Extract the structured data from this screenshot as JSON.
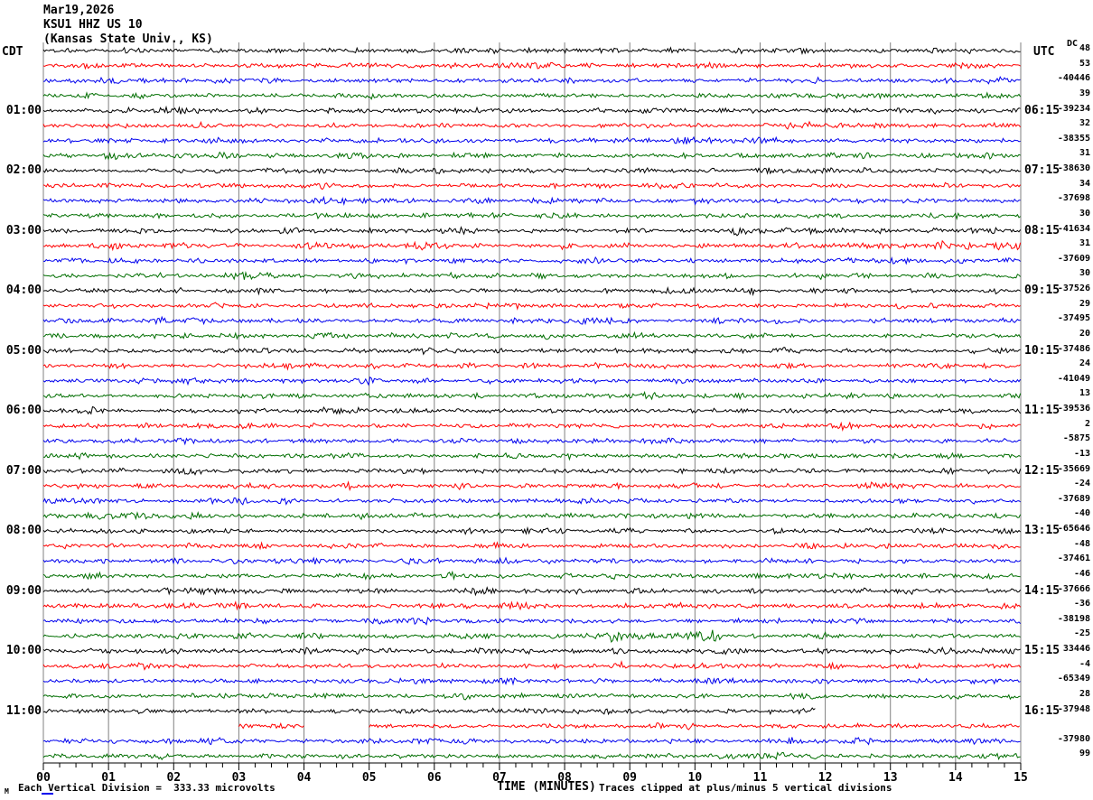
{
  "title": {
    "line1": "Mar19,2026",
    "line2": "KSU1 HHZ US 10",
    "line3": "(Kansas State Univ., KS)"
  },
  "header": {
    "left_timezone": "CDT",
    "right_timezone": "UTC",
    "dc_column": "DC"
  },
  "footer": {
    "x_axis_title": "TIME (MINUTES)",
    "left_note": "Each Vertical Division =  333.33 microvolts",
    "right_note": "Traces clipped at plus/minus 5 vertical divisions",
    "corner_mark": "M"
  },
  "colors": {
    "black": "#000000",
    "red": "#FF0000",
    "blue": "#0000EE",
    "green": "#006E00",
    "grid": "#808080",
    "axis": "#000000",
    "link_underline": "#0000EE"
  },
  "chart_data": {
    "type": "line",
    "subtype": "helicorder-seismogram",
    "minutes_per_row": 15,
    "x_tick_labels": [
      "00",
      "01",
      "02",
      "03",
      "04",
      "05",
      "06",
      "07",
      "08",
      "09",
      "10",
      "11",
      "12",
      "13",
      "14",
      "15"
    ],
    "minor_ticks_per_minute": 4,
    "trace_color_cycle": [
      "black",
      "red",
      "blue",
      "green"
    ],
    "clip_divisions": 5,
    "microvolts_per_division": "333.33",
    "rows": [
      {
        "cdt": "",
        "utc": "",
        "dc": "48",
        "color": "black",
        "segments": [
          [
            0,
            15
          ]
        ]
      },
      {
        "cdt": "",
        "utc": "",
        "dc": "53",
        "color": "red",
        "segments": [
          [
            0,
            15
          ]
        ]
      },
      {
        "cdt": "",
        "utc": "",
        "dc": "-40446",
        "color": "blue",
        "segments": [
          [
            0,
            15
          ]
        ]
      },
      {
        "cdt": "",
        "utc": "",
        "dc": "39",
        "color": "green",
        "segments": [
          [
            0,
            15
          ]
        ]
      },
      {
        "cdt": "01:00",
        "utc": "06:15",
        "dc": "-39234",
        "color": "black",
        "segments": [
          [
            0,
            15
          ]
        ]
      },
      {
        "cdt": "",
        "utc": "",
        "dc": "32",
        "color": "red",
        "segments": [
          [
            0,
            15
          ]
        ]
      },
      {
        "cdt": "",
        "utc": "",
        "dc": "-38355",
        "color": "blue",
        "segments": [
          [
            0,
            15
          ]
        ]
      },
      {
        "cdt": "",
        "utc": "",
        "dc": "31",
        "color": "green",
        "segments": [
          [
            0,
            15
          ]
        ]
      },
      {
        "cdt": "02:00",
        "utc": "07:15",
        "dc": "-38630",
        "color": "black",
        "segments": [
          [
            0,
            15
          ]
        ]
      },
      {
        "cdt": "",
        "utc": "",
        "dc": "34",
        "color": "red",
        "segments": [
          [
            0,
            15
          ]
        ]
      },
      {
        "cdt": "",
        "utc": "",
        "dc": "-37698",
        "color": "blue",
        "segments": [
          [
            0,
            15
          ]
        ]
      },
      {
        "cdt": "",
        "utc": "",
        "dc": "30",
        "color": "green",
        "segments": [
          [
            0,
            15
          ]
        ]
      },
      {
        "cdt": "03:00",
        "utc": "08:15",
        "dc": "-41634",
        "color": "black",
        "segments": [
          [
            0,
            15
          ]
        ]
      },
      {
        "cdt": "",
        "utc": "",
        "dc": "31",
        "color": "red",
        "segments": [
          [
            0,
            15
          ]
        ]
      },
      {
        "cdt": "",
        "utc": "",
        "dc": "-37609",
        "color": "blue",
        "segments": [
          [
            0,
            15
          ]
        ]
      },
      {
        "cdt": "",
        "utc": "",
        "dc": "30",
        "color": "green",
        "segments": [
          [
            0,
            15
          ]
        ]
      },
      {
        "cdt": "04:00",
        "utc": "09:15",
        "dc": "-37526",
        "color": "black",
        "segments": [
          [
            0,
            15
          ]
        ]
      },
      {
        "cdt": "",
        "utc": "",
        "dc": "29",
        "color": "red",
        "segments": [
          [
            0,
            15
          ]
        ]
      },
      {
        "cdt": "",
        "utc": "",
        "dc": "-37495",
        "color": "blue",
        "segments": [
          [
            0,
            15
          ]
        ]
      },
      {
        "cdt": "",
        "utc": "",
        "dc": "20",
        "color": "green",
        "segments": [
          [
            0,
            15
          ]
        ]
      },
      {
        "cdt": "05:00",
        "utc": "10:15",
        "dc": "-37486",
        "color": "black",
        "segments": [
          [
            0,
            15
          ]
        ]
      },
      {
        "cdt": "",
        "utc": "",
        "dc": "24",
        "color": "red",
        "segments": [
          [
            0,
            15
          ]
        ]
      },
      {
        "cdt": "",
        "utc": "",
        "dc": "-41049",
        "color": "blue",
        "segments": [
          [
            0,
            15
          ]
        ]
      },
      {
        "cdt": "",
        "utc": "",
        "dc": "13",
        "color": "green",
        "segments": [
          [
            0,
            15
          ]
        ]
      },
      {
        "cdt": "06:00",
        "utc": "11:15",
        "dc": "-39536",
        "color": "black",
        "segments": [
          [
            0,
            15
          ]
        ]
      },
      {
        "cdt": "",
        "utc": "",
        "dc": "2",
        "color": "red",
        "segments": [
          [
            0,
            15
          ]
        ]
      },
      {
        "cdt": "",
        "utc": "",
        "dc": "-5875",
        "color": "blue",
        "segments": [
          [
            0,
            15
          ]
        ]
      },
      {
        "cdt": "",
        "utc": "",
        "dc": "-13",
        "color": "green",
        "segments": [
          [
            0,
            15
          ]
        ]
      },
      {
        "cdt": "07:00",
        "utc": "12:15",
        "dc": "-35669",
        "color": "black",
        "segments": [
          [
            0,
            15
          ]
        ]
      },
      {
        "cdt": "",
        "utc": "",
        "dc": "-24",
        "color": "red",
        "segments": [
          [
            0,
            15
          ]
        ]
      },
      {
        "cdt": "",
        "utc": "",
        "dc": "-37689",
        "color": "blue",
        "segments": [
          [
            0,
            15
          ]
        ]
      },
      {
        "cdt": "",
        "utc": "",
        "dc": "-40",
        "color": "green",
        "segments": [
          [
            0,
            15
          ]
        ]
      },
      {
        "cdt": "08:00",
        "utc": "13:15",
        "dc": "-65646",
        "color": "black",
        "segments": [
          [
            0,
            15
          ]
        ]
      },
      {
        "cdt": "",
        "utc": "",
        "dc": "-48",
        "color": "red",
        "segments": [
          [
            0,
            15
          ]
        ]
      },
      {
        "cdt": "",
        "utc": "",
        "dc": "-37461",
        "color": "blue",
        "segments": [
          [
            0,
            15
          ]
        ]
      },
      {
        "cdt": "",
        "utc": "",
        "dc": "-46",
        "color": "green",
        "segments": [
          [
            0,
            15
          ]
        ]
      },
      {
        "cdt": "09:00",
        "utc": "14:15",
        "dc": "-37666",
        "color": "black",
        "segments": [
          [
            0,
            15
          ]
        ]
      },
      {
        "cdt": "",
        "utc": "",
        "dc": "-36",
        "color": "red",
        "segments": [
          [
            0,
            15
          ]
        ]
      },
      {
        "cdt": "",
        "utc": "",
        "dc": "-38198",
        "color": "blue",
        "segments": [
          [
            0,
            15
          ]
        ]
      },
      {
        "cdt": "",
        "utc": "",
        "dc": "-25",
        "color": "green",
        "segments": [
          [
            0,
            15
          ]
        ]
      },
      {
        "cdt": "10:00",
        "utc": "15:15",
        "dc": "33446",
        "color": "black",
        "segments": [
          [
            0,
            15
          ]
        ]
      },
      {
        "cdt": "",
        "utc": "",
        "dc": "-4",
        "color": "red",
        "segments": [
          [
            0,
            15
          ]
        ]
      },
      {
        "cdt": "",
        "utc": "",
        "dc": "-65349",
        "color": "blue",
        "segments": [
          [
            0,
            15
          ]
        ]
      },
      {
        "cdt": "",
        "utc": "",
        "dc": "28",
        "color": "green",
        "segments": [
          [
            0,
            15
          ]
        ]
      },
      {
        "cdt": "11:00",
        "utc": "16:15",
        "dc": "-37948",
        "color": "black",
        "segments": [
          [
            0,
            11.85
          ]
        ]
      },
      {
        "cdt": "",
        "utc": "",
        "dc": "",
        "color": "red",
        "segments": [
          [
            3,
            4
          ],
          [
            5,
            15
          ]
        ]
      },
      {
        "cdt": "",
        "utc": "",
        "dc": "-37980",
        "color": "blue",
        "segments": [
          [
            0,
            15
          ]
        ]
      },
      {
        "cdt": "",
        "utc": "",
        "dc": "99",
        "color": "green",
        "segments": [
          [
            0,
            15
          ]
        ]
      }
    ],
    "bursts": [
      {
        "row": 39,
        "from": 8.6,
        "to": 10.4,
        "amp": 2.3
      },
      {
        "row": 13,
        "from": 12.3,
        "to": 15.0,
        "amp": 1.7
      },
      {
        "row": 12,
        "from": 10.5,
        "to": 12.0,
        "amp": 1.5
      }
    ]
  }
}
